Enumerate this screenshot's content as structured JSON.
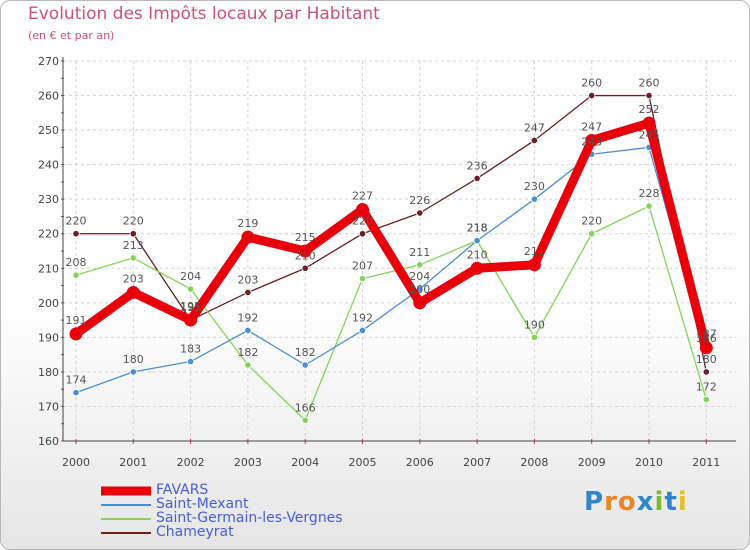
{
  "chart_data": {
    "type": "line",
    "title": "Evolution des Impôts locaux par Habitant",
    "subtitle": "(en € et par an)",
    "xlabel": "",
    "ylabel": "",
    "categories": [
      "2000",
      "2001",
      "2002",
      "2003",
      "2004",
      "2005",
      "2006",
      "2007",
      "2008",
      "2009",
      "2010",
      "2011"
    ],
    "ylim": [
      160,
      270
    ],
    "yticks": [
      "160",
      "170",
      "180",
      "190",
      "200",
      "210",
      "220",
      "230",
      "240",
      "250",
      "260",
      "270"
    ],
    "grid": true,
    "legend_position": "bottom-left",
    "series": [
      {
        "name": "Chameyrat",
        "color": "#6b1f24",
        "values": [
          220,
          220,
          195,
          203,
          210,
          220,
          226,
          236,
          247,
          260,
          260,
          180
        ]
      },
      {
        "name": "Saint-Germain-les-Vergnes",
        "color": "#86d35a",
        "values": [
          208,
          213,
          204,
          182,
          166,
          207,
          211,
          218,
          190,
          220,
          228,
          172
        ]
      },
      {
        "name": "Saint-Mexant",
        "color": "#4b8fd1",
        "values": [
          174,
          180,
          183,
          192,
          182,
          192,
          204,
          218,
          230,
          243,
          245,
          186
        ]
      },
      {
        "name": "FAVARS",
        "color": "#e8000b",
        "values": [
          191,
          203,
          195,
          219,
          215,
          227,
          200,
          210,
          211,
          247,
          252,
          187
        ]
      }
    ],
    "value_labels": {
      "Chameyrat": [
        "220",
        "220",
        "195",
        "203",
        "210",
        "220",
        "226",
        "236",
        "247",
        "260",
        "260",
        "180"
      ],
      "Saint-Germain-les-Vergnes": [
        "208",
        "213",
        "204",
        "182",
        "166",
        "207",
        "211",
        "218",
        "190",
        "220",
        "228",
        "172"
      ],
      "Saint-Mexant": [
        "174",
        "180",
        "183",
        "192",
        "182",
        "192",
        "204",
        "218",
        "230",
        "243",
        "245",
        "186"
      ],
      "FAVARS": [
        "191",
        "203",
        "195",
        "219",
        "215",
        "227",
        "200",
        "210",
        "211",
        "247",
        "252",
        "187"
      ]
    },
    "legend_order": [
      "FAVARS",
      "Saint-Mexant",
      "Saint-Germain-les-Vergnes",
      "Chameyrat"
    ]
  },
  "logo": {
    "letters": [
      "P",
      "r",
      "o",
      "x",
      "i",
      "t",
      "i"
    ]
  }
}
